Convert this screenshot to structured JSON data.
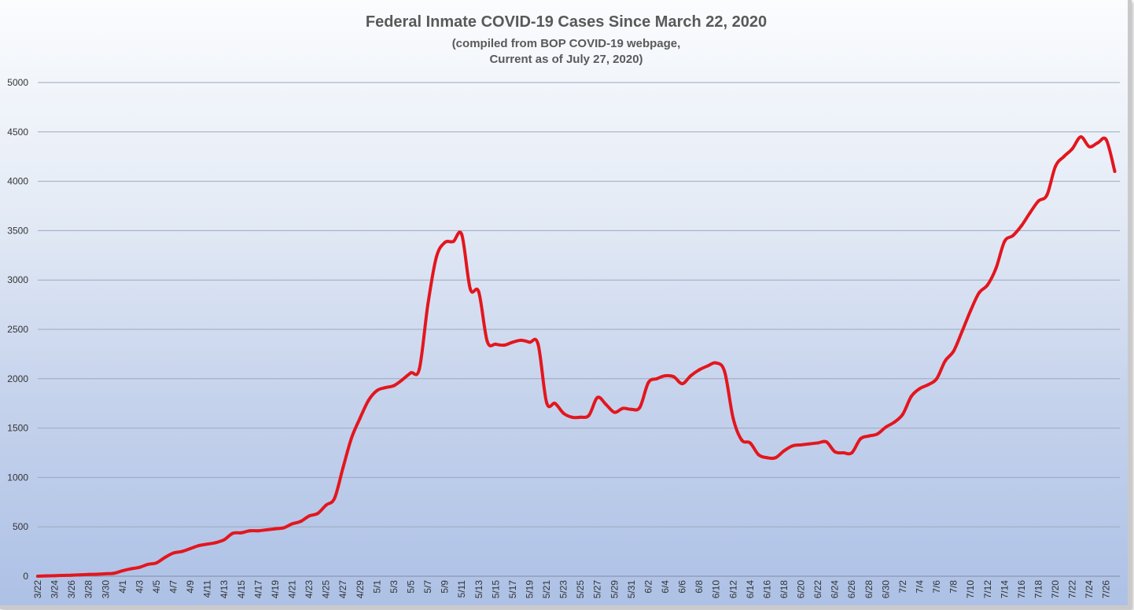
{
  "chart_data": {
    "type": "line",
    "title": "Federal Inmate COVID-19 Cases Since March 22, 2020",
    "subtitle_lines": [
      "(compiled from BOP COVID-19 webpage,",
      "Current as of July 27, 2020)"
    ],
    "xlabel": "",
    "ylabel": "",
    "ylim": [
      0,
      5000
    ],
    "yticks": [
      0,
      500,
      1000,
      1500,
      2000,
      2500,
      3000,
      3500,
      4000,
      4500,
      5000
    ],
    "grid": true,
    "legend": "none",
    "line_color": "#e3161e",
    "categories": [
      "3/22",
      "3/24",
      "3/26",
      "3/28",
      "3/30",
      "4/1",
      "4/3",
      "4/5",
      "4/7",
      "4/9",
      "4/11",
      "4/13",
      "4/15",
      "4/17",
      "4/19",
      "4/21",
      "4/23",
      "4/25",
      "4/27",
      "4/29",
      "5/1",
      "5/3",
      "5/5",
      "5/7",
      "5/9",
      "5/11",
      "5/13",
      "5/15",
      "5/17",
      "5/19",
      "5/21",
      "5/23",
      "5/25",
      "5/27",
      "5/29",
      "5/31",
      "6/2",
      "6/4",
      "6/6",
      "6/8",
      "6/10",
      "6/12",
      "6/14",
      "6/16",
      "6/18",
      "6/20",
      "6/22",
      "6/24",
      "6/26",
      "6/28",
      "6/30",
      "7/2",
      "7/4",
      "7/6",
      "7/8",
      "7/10",
      "7/12",
      "7/14",
      "7/16",
      "7/18",
      "7/20",
      "7/22",
      "7/24",
      "7/26"
    ],
    "series": [
      {
        "x": [
          "3/22",
          "3/23",
          "3/24",
          "3/25",
          "3/26",
          "3/27",
          "3/28",
          "3/29",
          "3/30",
          "3/31",
          "4/1",
          "4/2",
          "4/3",
          "4/4",
          "4/5",
          "4/6",
          "4/7",
          "4/8",
          "4/9",
          "4/10",
          "4/11",
          "4/12",
          "4/13",
          "4/14",
          "4/15",
          "4/16",
          "4/17",
          "4/18",
          "4/19",
          "4/20",
          "4/21",
          "4/22",
          "4/23",
          "4/24",
          "4/25",
          "4/26",
          "4/27",
          "4/28",
          "4/29",
          "4/30",
          "5/1",
          "5/2",
          "5/3",
          "5/4",
          "5/5",
          "5/6",
          "5/7",
          "5/8",
          "5/9",
          "5/10",
          "5/11",
          "5/12",
          "5/13",
          "5/14",
          "5/15",
          "5/16",
          "5/17",
          "5/18",
          "5/19",
          "5/20",
          "5/21",
          "5/22",
          "5/23",
          "5/24",
          "5/25",
          "5/26",
          "5/27",
          "5/28",
          "5/29",
          "5/30",
          "5/31",
          "6/1",
          "6/2",
          "6/3",
          "6/4",
          "6/5",
          "6/6",
          "6/7",
          "6/8",
          "6/9",
          "6/10",
          "6/11",
          "6/12",
          "6/13",
          "6/14",
          "6/15",
          "6/16",
          "6/17",
          "6/18",
          "6/19",
          "6/20",
          "6/21",
          "6/22",
          "6/23",
          "6/24",
          "6/25",
          "6/26",
          "6/27",
          "6/28",
          "6/29",
          "6/30",
          "7/1",
          "7/2",
          "7/3",
          "7/4",
          "7/5",
          "7/6",
          "7/7",
          "7/8",
          "7/9",
          "7/10",
          "7/11",
          "7/12",
          "7/13",
          "7/14",
          "7/15",
          "7/16",
          "7/17",
          "7/18",
          "7/19",
          "7/20",
          "7/21",
          "7/22",
          "7/23",
          "7/24",
          "7/25",
          "7/26",
          "7/27"
        ],
        "values": [
          0,
          3,
          5,
          8,
          10,
          14,
          18,
          20,
          25,
          30,
          55,
          75,
          90,
          120,
          135,
          190,
          235,
          250,
          280,
          310,
          325,
          340,
          370,
          435,
          440,
          460,
          460,
          470,
          480,
          490,
          530,
          555,
          610,
          635,
          720,
          790,
          1100,
          1400,
          1600,
          1780,
          1880,
          1910,
          1930,
          1990,
          2060,
          2100,
          2750,
          3230,
          3380,
          3390,
          3460,
          2910,
          2880,
          2380,
          2350,
          2340,
          2370,
          2390,
          2370,
          2350,
          1760,
          1750,
          1650,
          1610,
          1610,
          1630,
          1810,
          1740,
          1660,
          1700,
          1690,
          1710,
          1960,
          2000,
          2030,
          2020,
          1950,
          2030,
          2090,
          2130,
          2160,
          2070,
          1600,
          1380,
          1350,
          1230,
          1200,
          1200,
          1270,
          1320,
          1330,
          1340,
          1350,
          1360,
          1260,
          1250,
          1250,
          1390,
          1420,
          1440,
          1510,
          1560,
          1640,
          1820,
          1900,
          1940,
          2000,
          2180,
          2280,
          2480,
          2690,
          2870,
          2950,
          3120,
          3390,
          3450,
          3550,
          3680,
          3800,
          3860,
          4150,
          4250,
          4330,
          4450,
          4350,
          4390,
          4420,
          4100
        ]
      }
    ]
  }
}
